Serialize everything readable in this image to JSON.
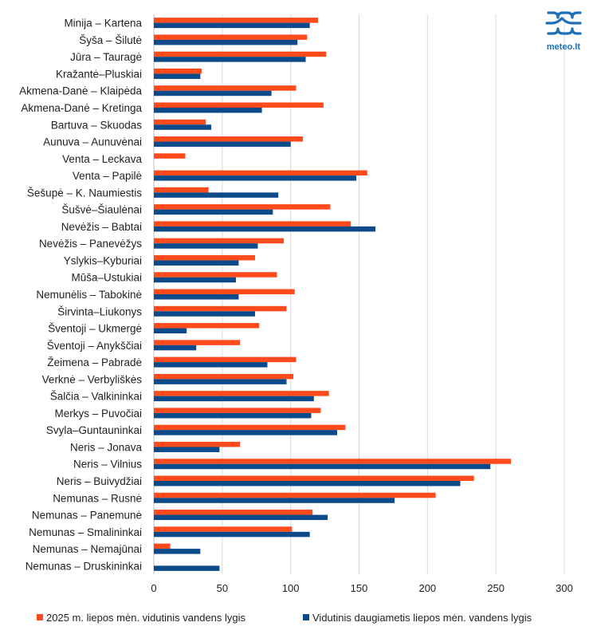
{
  "logo": {
    "text": "meteo.lt",
    "color": "#1d6fb8"
  },
  "colors": {
    "series_2025": "#ff4a1c",
    "series_longterm": "#0d4a8a",
    "grid": "#d9d9d9",
    "axis": "#bfbfbf"
  },
  "chart_data": {
    "type": "bar",
    "orientation": "horizontal",
    "categories": [
      "Minija – Kartena",
      "Šyša – Šilutė",
      "Jūra – Tauragė",
      "Kražantė–Pluskiai",
      "Akmena-Danė – Klaipėda",
      "Akmena-Danė – Kretinga",
      "Bartuva – Skuodas",
      "Aunuva – Aunuvėnai",
      "Venta – Leckava",
      "Venta – Papilė",
      "Šešupė – K. Naumiestis",
      "Šušvė–Šiaulėnai",
      "Nevėžis – Babtai",
      "Nevėžis – Panevėžys",
      "Yslykis–Kyburiai",
      "Mūša–Ustukiai",
      "Nemunėlis – Tabokinė",
      "Širvinta–Liukonys",
      "Šventoji – Ukmergė",
      "Šventoji – Anykščiai",
      "Žeimena – Pabradė",
      "Verknė – Verbyliškės",
      "Šalčia – Valkininkai",
      "Merkys – Puvočiai",
      "Svyla–Guntauninkai",
      "Neris – Jonava",
      "Neris – Vilnius",
      "Neris – Buivydžiai",
      "Nemunas – Rusnė",
      "Nemunas – Panemunė",
      "Nemunas – Smalininkai",
      "Nemunas – Nemajūnai",
      "Nemunas – Druskininkai"
    ],
    "series": [
      {
        "name": "2025 m. liepos mėn. vidutinis vandens lygis",
        "color": "#ff4a1c",
        "values": [
          120,
          112,
          126,
          35,
          104,
          124,
          38,
          109,
          23,
          156,
          40,
          129,
          144,
          95,
          74,
          90,
          103,
          97,
          77,
          63,
          104,
          102,
          128,
          122,
          140,
          63,
          261,
          234,
          206,
          116,
          101,
          12,
          null
        ]
      },
      {
        "name": "Vidutinis daugiametis liepos mėn. vandens lygis",
        "color": "#0d4a8a",
        "values": [
          114,
          105,
          111,
          34,
          86,
          79,
          42,
          100,
          null,
          148,
          91,
          87,
          162,
          76,
          62,
          60,
          62,
          74,
          24,
          31,
          83,
          97,
          117,
          115,
          134,
          48,
          246,
          224,
          176,
          127,
          114,
          34,
          48
        ]
      }
    ],
    "xlim": [
      0,
      300
    ],
    "xticks": [
      "0",
      "50",
      "100",
      "150",
      "200",
      "250",
      "300"
    ],
    "grid": true,
    "legend_position": "bottom"
  }
}
